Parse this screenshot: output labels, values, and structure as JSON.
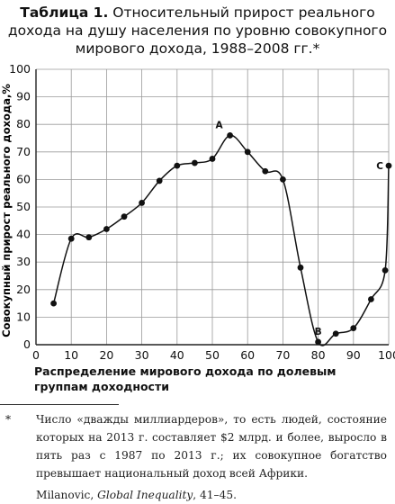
{
  "title": {
    "lead": "Таблица 1.",
    "rest": "Относительный прирост реального дохода на душу населения по уровню совокупного мирового дохода, 1988–2008 гг.*"
  },
  "chart_data": {
    "type": "line",
    "title": "Относительный прирост реального дохода на душу населения по уровню совокупного мирового дохода, 1988–2008 гг.",
    "xlabel": "Распределение мирового дохода по долевым группам доходности",
    "ylabel": "Совокупный прирост реального дохода,%",
    "xlim": [
      0,
      100
    ],
    "ylim": [
      0,
      100
    ],
    "x_ticks": [
      0,
      10,
      20,
      30,
      40,
      50,
      60,
      70,
      80,
      90,
      100
    ],
    "y_ticks": [
      0,
      10,
      20,
      30,
      40,
      50,
      60,
      70,
      80,
      90,
      100
    ],
    "grid": true,
    "x": [
      5,
      10,
      15,
      20,
      25,
      30,
      35,
      40,
      45,
      50,
      55,
      60,
      65,
      70,
      75,
      80,
      85,
      90,
      95,
      99,
      100
    ],
    "y": [
      15,
      38.5,
      39,
      42,
      46.5,
      51.5,
      59.5,
      65,
      66,
      67.5,
      76,
      70,
      63,
      60,
      28,
      1,
      4,
      6,
      16.5,
      27,
      65
    ],
    "annotations": [
      {
        "label": "A",
        "x": 55,
        "y": 76
      },
      {
        "label": "B",
        "x": 80,
        "y": 1
      },
      {
        "label": "C",
        "x": 100,
        "y": 65
      }
    ]
  },
  "footnote": {
    "marker": "*",
    "text": "Число «дважды миллиардеров», то есть людей, состояние которых на 2013 г. составляет $2 млрд. и более, выросло в пять раз с 1987 по 2013 г.; их совокупное богатство превышает национальный доход всей Африки.",
    "source_author": "Milanovic, ",
    "source_title": "Global Inequality",
    "source_pages": ", 41–45."
  }
}
